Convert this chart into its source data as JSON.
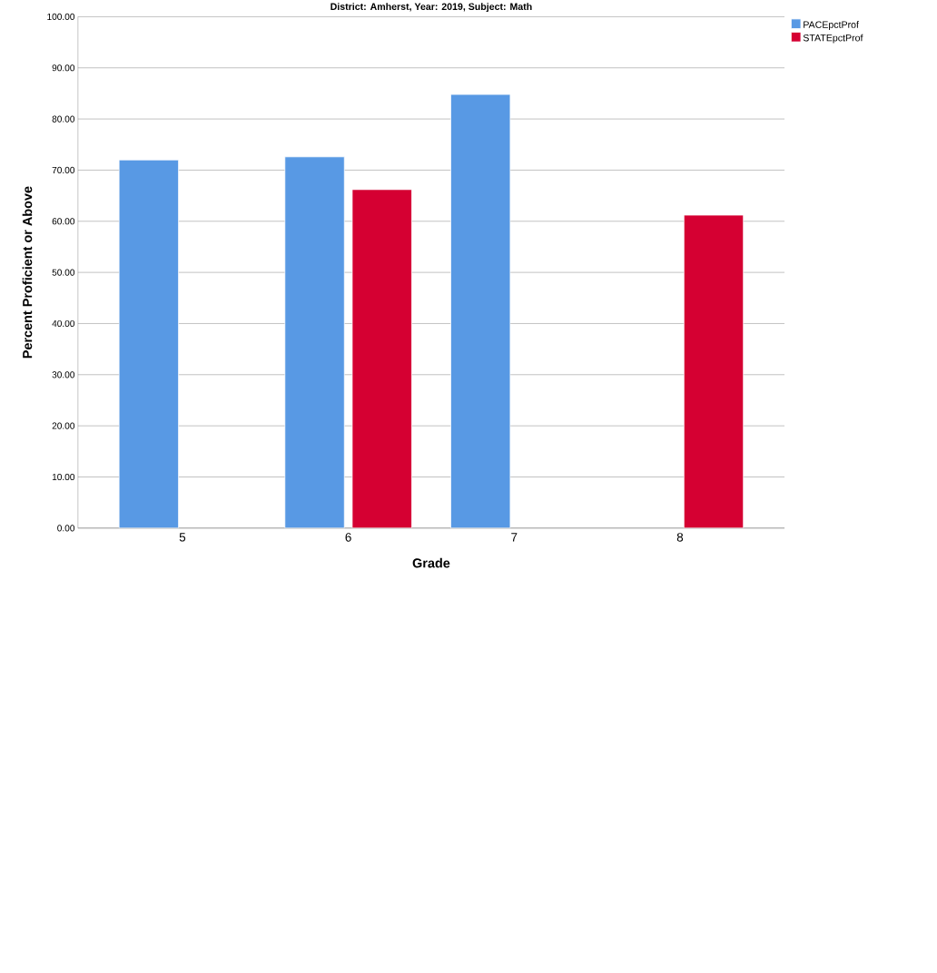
{
  "chart_data": {
    "type": "bar",
    "title": "District: Amherst, Year: 2019, Subject: Math",
    "xlabel": "Grade",
    "ylabel": "Percent Proficient or Above",
    "categories": [
      "5",
      "6",
      "7",
      "8"
    ],
    "series": [
      {
        "name": "PACEpctProf",
        "color": "#5899e4",
        "values": [
          72.0,
          72.6,
          84.8,
          null
        ]
      },
      {
        "name": "STATEpctProf",
        "color": "#d50032",
        "values": [
          null,
          66.2,
          null,
          61.2
        ]
      }
    ],
    "ylim": [
      0,
      100
    ],
    "yticks": [
      {
        "value": 0,
        "label": "0.00"
      },
      {
        "value": 10,
        "label": "10.00"
      },
      {
        "value": 20,
        "label": "20.00"
      },
      {
        "value": 30,
        "label": "30.00"
      },
      {
        "value": 40,
        "label": "40.00"
      },
      {
        "value": 50,
        "label": "50.00"
      },
      {
        "value": 60,
        "label": "60.00"
      },
      {
        "value": 70,
        "label": "70.00"
      },
      {
        "value": 80,
        "label": "80.00"
      },
      {
        "value": 90,
        "label": "90.00"
      },
      {
        "value": 100,
        "label": "100.00"
      }
    ],
    "grid": "y",
    "legend": "top right"
  }
}
